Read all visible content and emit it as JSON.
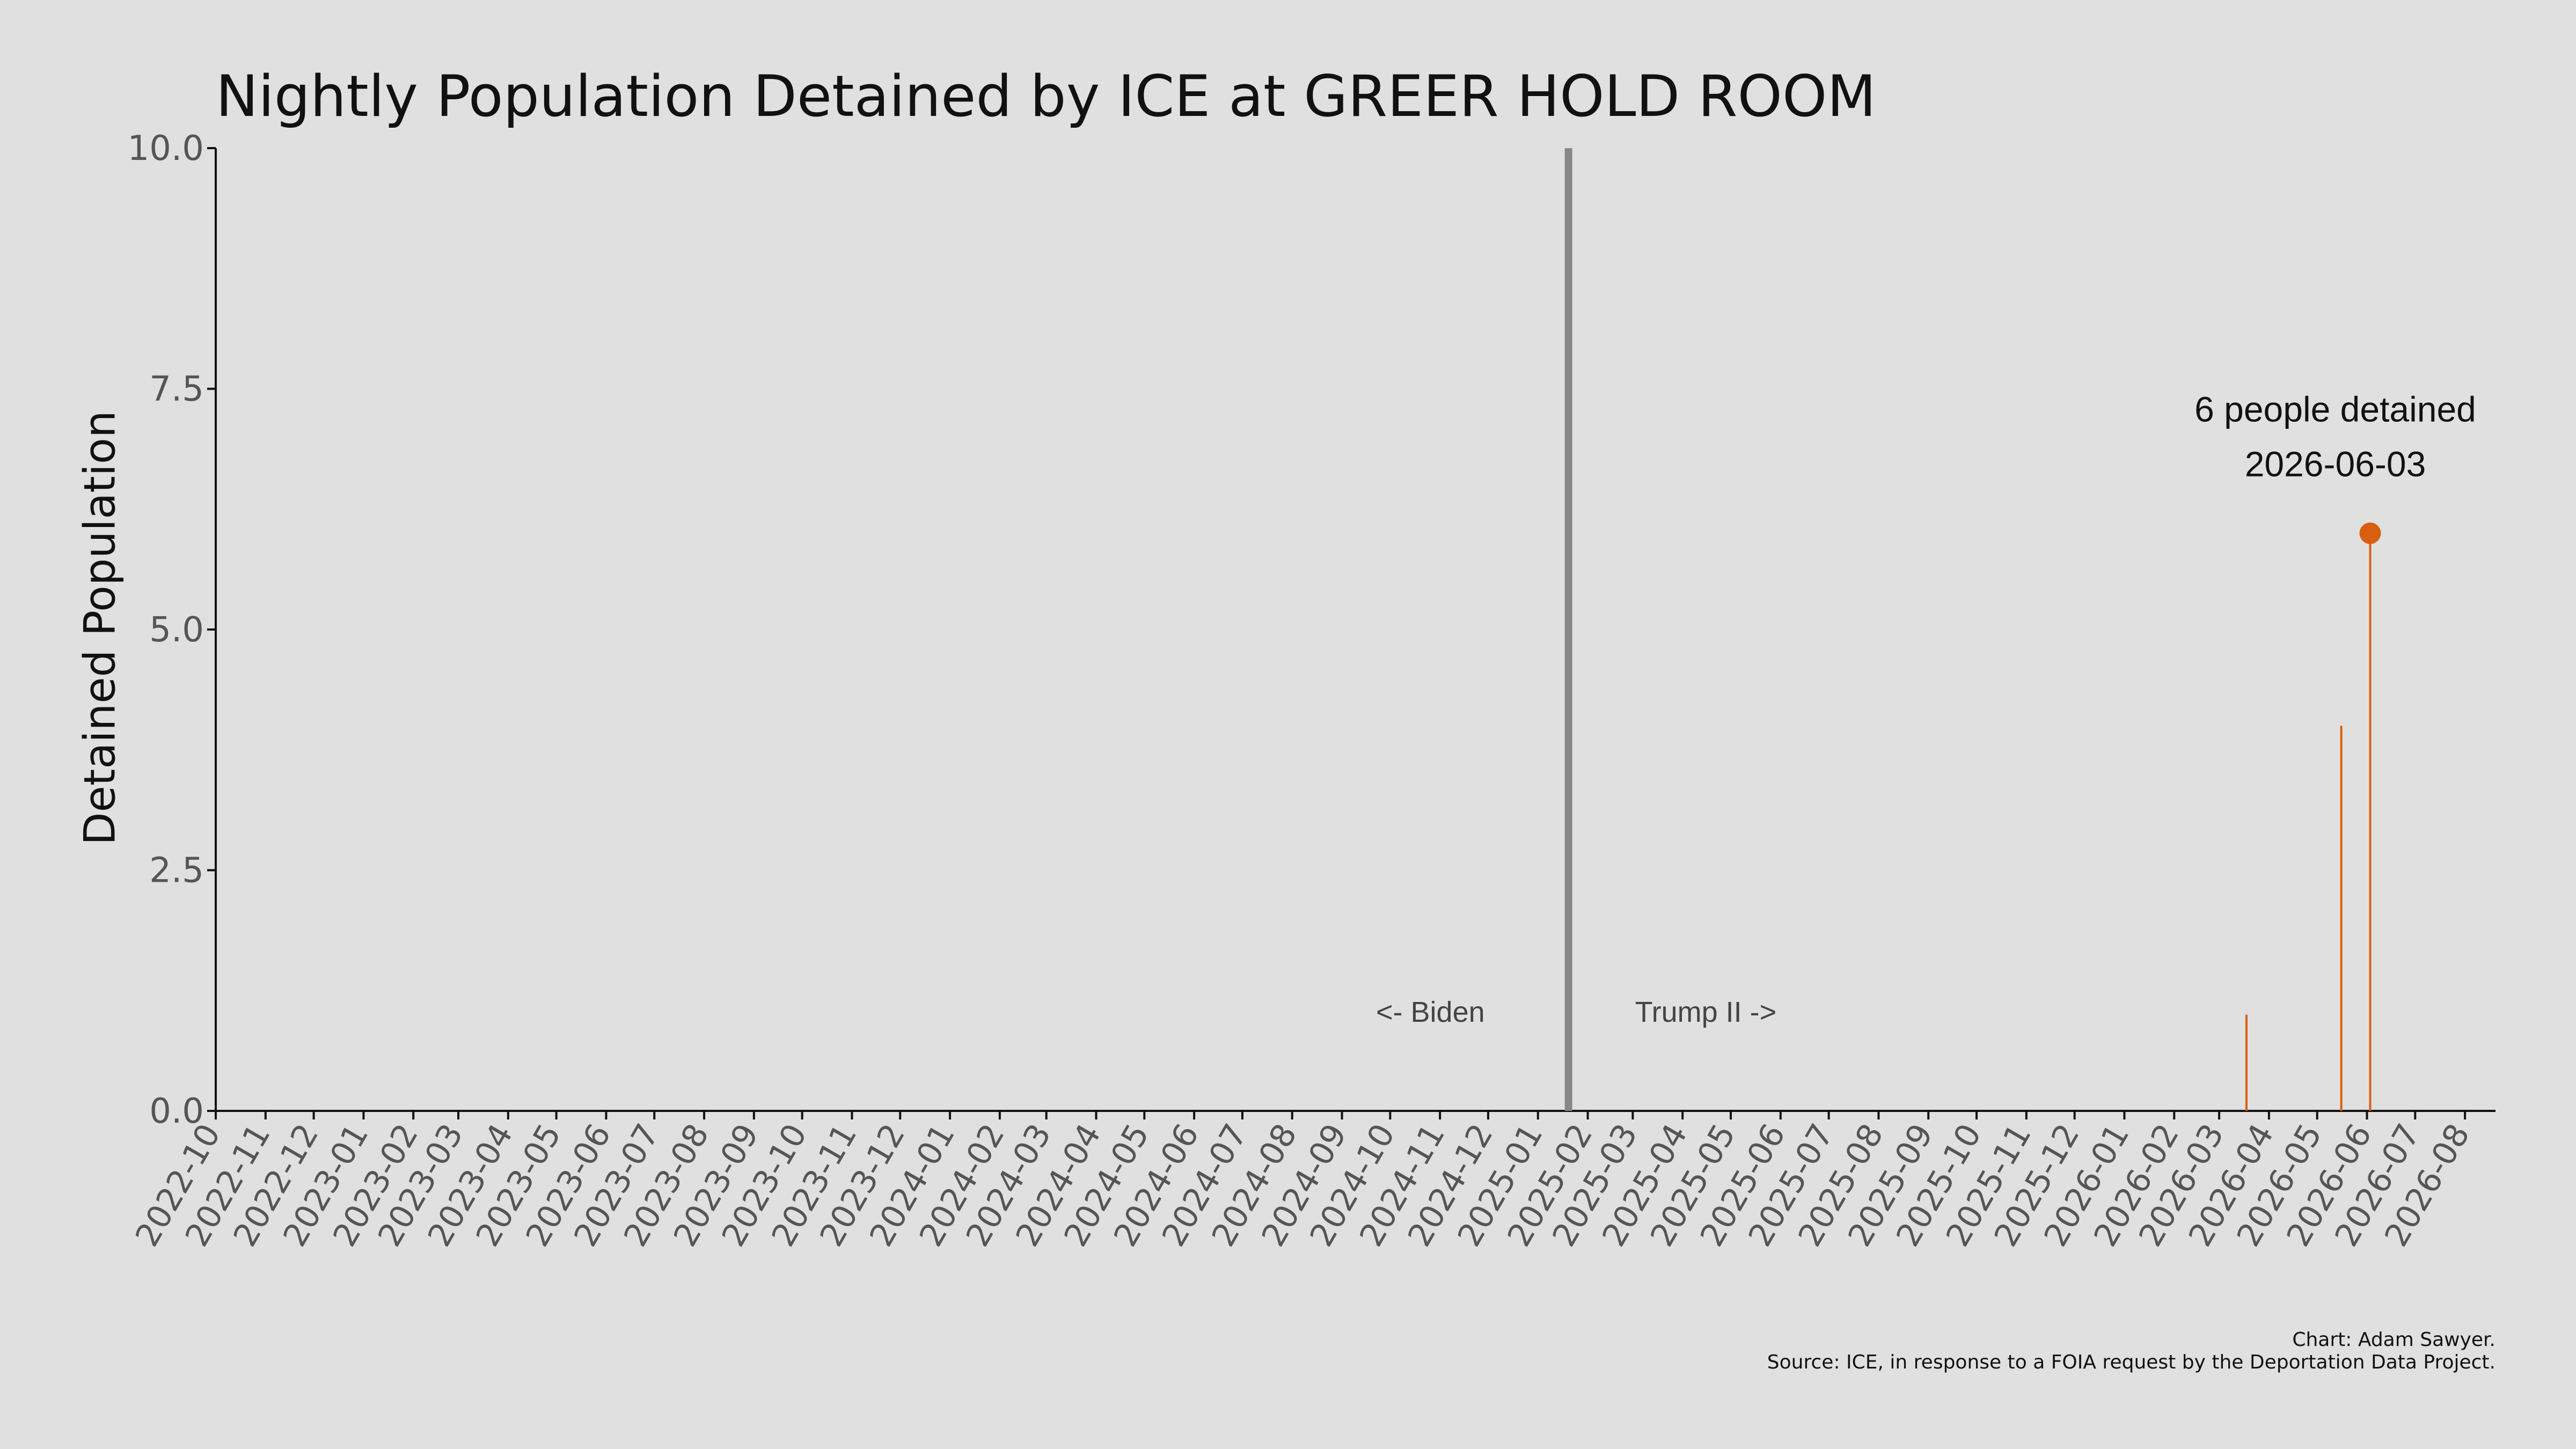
{
  "chart_data": {
    "type": "line",
    "title": "Nightly Population Detained by ICE at GREER HOLD ROOM",
    "ylabel": "Detained Population",
    "xlabel": "",
    "ylim": [
      0,
      10
    ],
    "yticks": [
      "0.0",
      "2.5",
      "5.0",
      "7.5",
      "10.0"
    ],
    "xlim": [
      "2022-10-01",
      "2026-08-20"
    ],
    "xticks": [
      "2022-10",
      "2022-11",
      "2022-12",
      "2023-01",
      "2023-02",
      "2023-03",
      "2023-04",
      "2023-05",
      "2023-06",
      "2023-07",
      "2023-08",
      "2023-09",
      "2023-10",
      "2023-11",
      "2023-12",
      "2024-01",
      "2024-02",
      "2024-03",
      "2024-04",
      "2024-05",
      "2024-06",
      "2024-07",
      "2024-08",
      "2024-09",
      "2024-10",
      "2024-11",
      "2024-12",
      "2025-01",
      "2025-02",
      "2025-03",
      "2025-04",
      "2025-05",
      "2025-06",
      "2025-07",
      "2025-08",
      "2025-09",
      "2025-10",
      "2025-11",
      "2025-12",
      "2026-01",
      "2026-02",
      "2026-03",
      "2026-04",
      "2026-05",
      "2026-06",
      "2026-07",
      "2026-08"
    ],
    "series": [
      {
        "color": "#d95f0e",
        "points": [
          {
            "x": "2026-03-18",
            "y": 1
          },
          {
            "x": "2026-05-16",
            "y": 4
          },
          {
            "x": "2026-06-03",
            "y": 6
          }
        ]
      }
    ],
    "divider": {
      "x": "2025-01-20",
      "color": "#888888"
    },
    "annotations": {
      "left_label": "<- Biden",
      "right_label": "Trump II ->",
      "peak_line1": "6 people detained",
      "peak_line2": "2026-06-03"
    },
    "grid": false,
    "background": "#e0e0e0"
  },
  "credits": {
    "line1": "Chart: Adam Sawyer.",
    "line2": "Source: ICE, in response to a FOIA request by the Deportation Data Project."
  }
}
